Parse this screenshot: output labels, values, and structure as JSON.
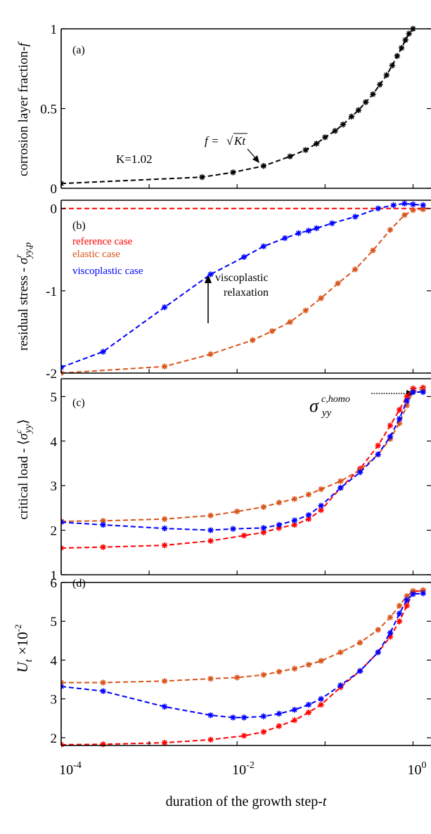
{
  "figure": {
    "xlabel_prefix": "duration of the growth step-",
    "xlabel_var": "t",
    "xtick_base": "10",
    "xtick_exponents": [
      "-4",
      "-2",
      "0"
    ]
  },
  "colors": {
    "black": "#000000",
    "red": "#ff0000",
    "orange": "#d95319",
    "blue": "#0000ff"
  },
  "chart_data": [
    {
      "type": "line",
      "panel": "(a)",
      "ylabel": "corrosion layer fraction-",
      "ylabel_var": "f",
      "xscale": "log",
      "xlim": [
        0.0001,
        1.6
      ],
      "ylim": [
        0,
        1
      ],
      "yticks": [
        "0",
        "0.5",
        "1"
      ],
      "annotations": {
        "k_value": "K=1.02",
        "formula_lhs": "f =",
        "formula_rhs": "Kt"
      },
      "series": [
        {
          "color": "#000000",
          "x": [
            0.0001,
            0.004,
            0.009,
            0.02,
            0.04,
            0.06,
            0.08,
            0.1,
            0.13,
            0.16,
            0.2,
            0.24,
            0.29,
            0.35,
            0.42,
            0.5,
            0.58,
            0.66,
            0.74,
            0.82,
            0.9,
            1.0
          ],
          "y": [
            0.03,
            0.07,
            0.1,
            0.14,
            0.2,
            0.24,
            0.28,
            0.32,
            0.36,
            0.4,
            0.45,
            0.49,
            0.54,
            0.59,
            0.65,
            0.71,
            0.77,
            0.83,
            0.88,
            0.93,
            0.97,
            1.0
          ]
        }
      ]
    },
    {
      "type": "line",
      "panel": "(b)",
      "ylabel": "residual stress - ",
      "ylabel_sym": "σ",
      "ylabel_sup": "r",
      "ylabel_sub": "yy,p",
      "xscale": "log",
      "xlim": [
        0.0001,
        1.6
      ],
      "ylim": [
        -2,
        0.1
      ],
      "yticks": [
        "-2",
        "-1",
        "0"
      ],
      "legend": [
        {
          "name": "reference case",
          "color": "#ff0000"
        },
        {
          "name": "elastic case",
          "color": "#d95319"
        },
        {
          "name": "viscoplastic case",
          "color": "#0000ff"
        }
      ],
      "annotations": {
        "line1": "viscoplastic",
        "line2": "relaxation"
      },
      "series": [
        {
          "name": "reference case",
          "color": "#ff0000",
          "markers": false,
          "x": [
            0.0001,
            1.6
          ],
          "y": [
            0,
            0
          ]
        },
        {
          "name": "elastic case",
          "color": "#d95319",
          "markers": true,
          "x": [
            0.0001,
            0.0015,
            0.005,
            0.015,
            0.025,
            0.04,
            0.06,
            0.09,
            0.14,
            0.22,
            0.35,
            0.55,
            0.8,
            1.0,
            1.3
          ],
          "y": [
            -2.0,
            -1.92,
            -1.77,
            -1.6,
            -1.49,
            -1.38,
            -1.24,
            -1.09,
            -0.91,
            -0.74,
            -0.51,
            -0.26,
            -0.08,
            -0.02,
            -0.01
          ]
        },
        {
          "name": "viscoplastic case",
          "color": "#0000ff",
          "markers": true,
          "x": [
            0.0001,
            0.0003,
            0.0015,
            0.005,
            0.012,
            0.02,
            0.035,
            0.05,
            0.065,
            0.08,
            0.12,
            0.22,
            0.4,
            0.6,
            0.8,
            1.0,
            1.3
          ],
          "y": [
            -1.93,
            -1.74,
            -1.2,
            -0.8,
            -0.59,
            -0.46,
            -0.36,
            -0.3,
            -0.27,
            -0.24,
            -0.18,
            -0.1,
            0.0,
            0.04,
            0.06,
            0.05,
            0.04
          ]
        }
      ]
    },
    {
      "type": "line",
      "panel": "(c)",
      "ylabel": "critical load - ",
      "ylabel_sym": "σ",
      "ylabel_sup": "c",
      "ylabel_sub": "yy",
      "xscale": "log",
      "xlim": [
        0.0001,
        1.6
      ],
      "ylim": [
        1,
        5.4
      ],
      "yticks": [
        "1",
        "2",
        "3",
        "4",
        "5"
      ],
      "annotations": {
        "homo_sym": "σ",
        "homo_sub": "yy",
        "homo_sup": "c,homo"
      },
      "series": [
        {
          "name": "reference case",
          "color": "#ff0000",
          "x": [
            0.0001,
            0.0003,
            0.0015,
            0.005,
            0.012,
            0.02,
            0.03,
            0.045,
            0.065,
            0.09,
            0.15,
            0.25,
            0.4,
            0.55,
            0.7,
            0.85,
            1.0,
            1.3
          ],
          "y": [
            1.6,
            1.62,
            1.66,
            1.76,
            1.88,
            1.95,
            2.05,
            2.12,
            2.25,
            2.45,
            2.95,
            3.38,
            3.9,
            4.35,
            4.7,
            5.0,
            5.18,
            5.2
          ]
        },
        {
          "name": "elastic case",
          "color": "#d95319",
          "x": [
            0.0001,
            0.0003,
            0.0015,
            0.005,
            0.01,
            0.02,
            0.03,
            0.045,
            0.065,
            0.09,
            0.15,
            0.25,
            0.4,
            0.55,
            0.7,
            0.85,
            1.0,
            1.3
          ],
          "y": [
            2.2,
            2.21,
            2.25,
            2.33,
            2.42,
            2.52,
            2.62,
            2.7,
            2.8,
            2.92,
            3.1,
            3.35,
            3.7,
            4.05,
            4.4,
            4.8,
            5.12,
            5.15
          ]
        },
        {
          "name": "viscoplastic case",
          "color": "#0000ff",
          "x": [
            0.0001,
            0.0003,
            0.0015,
            0.005,
            0.009,
            0.02,
            0.03,
            0.045,
            0.065,
            0.09,
            0.15,
            0.25,
            0.4,
            0.55,
            0.7,
            0.85,
            1.0,
            1.3
          ],
          "y": [
            2.18,
            2.12,
            2.04,
            2.0,
            2.03,
            2.05,
            2.12,
            2.22,
            2.34,
            2.55,
            2.95,
            3.3,
            3.7,
            4.1,
            4.5,
            4.9,
            5.1,
            5.1
          ]
        }
      ]
    },
    {
      "type": "line",
      "panel": "(d)",
      "ylabel_var": "U",
      "ylabel_sub": "t",
      "ylabel_mult": "×10",
      "ylabel_exp": "-2",
      "xscale": "log",
      "xlim": [
        0.0001,
        1.6
      ],
      "ylim": [
        1.8,
        6
      ],
      "yticks": [
        "2",
        "3",
        "4",
        "5",
        "6"
      ],
      "series": [
        {
          "name": "reference case",
          "color": "#ff0000",
          "x": [
            0.0001,
            0.0003,
            0.0015,
            0.005,
            0.012,
            0.02,
            0.03,
            0.045,
            0.065,
            0.09,
            0.15,
            0.25,
            0.4,
            0.55,
            0.7,
            0.85,
            1.0,
            1.3
          ],
          "y": [
            1.82,
            1.83,
            1.87,
            1.95,
            2.05,
            2.15,
            2.3,
            2.45,
            2.65,
            2.85,
            3.3,
            3.72,
            4.2,
            4.6,
            5.0,
            5.4,
            5.75,
            5.8
          ]
        },
        {
          "name": "elastic case",
          "color": "#d95319",
          "x": [
            0.0001,
            0.0003,
            0.0015,
            0.005,
            0.01,
            0.02,
            0.03,
            0.045,
            0.065,
            0.09,
            0.15,
            0.25,
            0.4,
            0.55,
            0.7,
            0.85,
            1.0,
            1.3
          ],
          "y": [
            3.42,
            3.42,
            3.46,
            3.52,
            3.55,
            3.62,
            3.7,
            3.78,
            3.88,
            3.98,
            4.2,
            4.45,
            4.78,
            5.1,
            5.4,
            5.65,
            5.78,
            5.8
          ]
        },
        {
          "name": "viscoplastic case",
          "color": "#0000ff",
          "x": [
            0.0001,
            0.0003,
            0.0015,
            0.005,
            0.009,
            0.012,
            0.02,
            0.03,
            0.045,
            0.065,
            0.09,
            0.15,
            0.25,
            0.4,
            0.55,
            0.7,
            0.85,
            1.0,
            1.3
          ],
          "y": [
            3.32,
            3.2,
            2.8,
            2.58,
            2.52,
            2.52,
            2.55,
            2.62,
            2.72,
            2.85,
            3.0,
            3.35,
            3.72,
            4.2,
            4.7,
            5.2,
            5.55,
            5.7,
            5.72
          ]
        }
      ]
    }
  ]
}
